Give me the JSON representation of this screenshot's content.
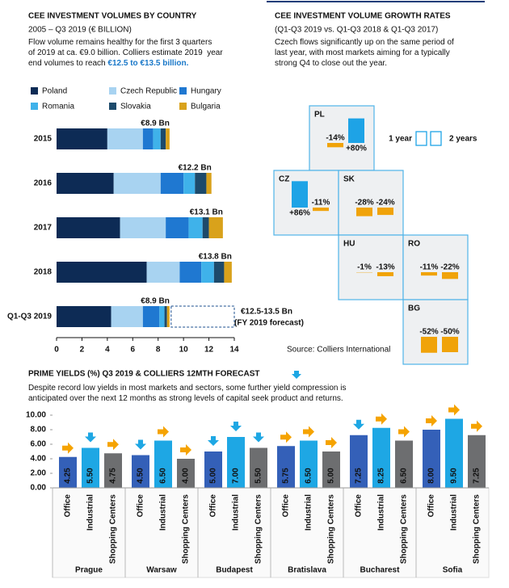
{
  "chart_data": [
    {
      "type": "barh",
      "title": "CEE INVESTMENT VOLUMES BY COUNTRY",
      "subtitle": "2005 – Q3 2019 (€ BILLION)",
      "description": [
        "Flow volume remains healthy for the first 3 quarters",
        "of 2019 at ca. €9.0 billion. Colliers estimate 2019  year",
        "end volumes to reach "
      ],
      "description_emphasis": "€12.5 to €13.5 billion.",
      "categories": [
        "2015",
        "2016",
        "2017",
        "2018",
        "Q1-Q3 2019"
      ],
      "series": [
        {
          "name": "Poland",
          "color": "#0d2b55",
          "values": [
            4.0,
            4.5,
            5.0,
            7.1,
            4.3
          ]
        },
        {
          "name": "Czech Republic",
          "color": "#a8d3f1",
          "values": [
            2.8,
            3.7,
            3.6,
            2.6,
            2.5
          ]
        },
        {
          "name": "Hungary",
          "color": "#1f78d1",
          "values": [
            0.8,
            1.8,
            1.8,
            1.7,
            1.3
          ]
        },
        {
          "name": "Romania",
          "color": "#3fb2ea",
          "values": [
            0.6,
            0.9,
            1.1,
            1.0,
            0.4
          ]
        },
        {
          "name": "Slovakia",
          "color": "#1d4a6b",
          "values": [
            0.4,
            0.9,
            0.5,
            0.8,
            0.2
          ]
        },
        {
          "name": "Bulgaria",
          "color": "#d9a21b",
          "values": [
            0.3,
            0.4,
            1.1,
            0.6,
            0.2
          ]
        }
      ],
      "total_labels": [
        "€8.9 Bn",
        "€12.2 Bn",
        "€13.1 Bn",
        "€13.8 Bn",
        "€8.9 Bn"
      ],
      "forecast": {
        "label": "€12.5-13.5 Bn",
        "note": "(FY 2019 forecast)"
      },
      "xlim": [
        0,
        14
      ],
      "xticks": [
        0,
        2,
        4,
        6,
        8,
        10,
        12,
        14
      ],
      "grid": false
    },
    {
      "type": "tiles",
      "title": "CEE INVESTMENT VOLUME GROWTH RATES",
      "subtitle": "(Q1-Q3 2019 vs. Q1-Q3 2018 & Q1-Q3 2017)",
      "description": [
        "Czech flows significantly up on the same period of",
        "last year, with most markets aiming for a typically",
        "strong Q4 to close out the year."
      ],
      "categories": [
        "PL",
        "CZ",
        "SK",
        "HU",
        "RO",
        "BG"
      ],
      "series": [
        {
          "name": "1 year",
          "values": [
            -14,
            86,
            -28,
            -1,
            -11,
            -52
          ],
          "value_labels": [
            "-14%",
            "+86%",
            "-28%",
            "-1%",
            "-11%",
            "-52%"
          ]
        },
        {
          "name": "2 years",
          "values": [
            80,
            -11,
            -24,
            -13,
            -22,
            -50
          ],
          "value_labels": [
            "+80%",
            "-11%",
            "-24%",
            "-13%",
            "-22%",
            "-50%"
          ]
        }
      ],
      "positive_color": "#1ea3e6",
      "negative_color": "#f0a30a",
      "source": "Source: Colliers International"
    },
    {
      "type": "bar",
      "title": "PRIME YIELDS (%) Q3 2019 & COLLIERS 12MTH FORECAST",
      "description": [
        "Despite record low yields in most markets and sectors, some further yield compression is",
        "anticipated over the next 12 months as strong levels of capital seek product and returns."
      ],
      "categories": [
        "Prague",
        "Warsaw",
        "Budapest",
        "Bratislava",
        "Bucharest",
        "Sofia"
      ],
      "series": [
        {
          "name": "Office",
          "color": "#3460b8",
          "values": [
            4.25,
            4.5,
            5.0,
            5.75,
            7.25,
            8.0
          ],
          "value_labels": [
            "4.25",
            "4.50",
            "5.00",
            "5.75",
            "7.25",
            "8.00"
          ],
          "forecast": [
            "right",
            "down",
            "down",
            "right",
            "down",
            "right"
          ]
        },
        {
          "name": "Industrial",
          "color": "#1ea7e4",
          "values": [
            5.5,
            6.5,
            7.0,
            6.5,
            8.25,
            9.5
          ],
          "value_labels": [
            "5.50",
            "6.50",
            "7.00",
            "6.50",
            "8.25",
            "9.50"
          ],
          "forecast": [
            "down",
            "right",
            "down",
            "right",
            "right",
            "right"
          ]
        },
        {
          "name": "Shopping Centers",
          "color": "#6d6e70",
          "values": [
            4.75,
            4.0,
            5.5,
            5.0,
            6.5,
            7.25
          ],
          "value_labels": [
            "4.75",
            "4.00",
            "5.50",
            "5.00",
            "6.50",
            "7.25"
          ],
          "forecast": [
            "right",
            "right",
            "down",
            "right",
            "right",
            "right"
          ]
        }
      ],
      "ylim": [
        0,
        10
      ],
      "yticks": [
        {
          "value": 0,
          "label": "0.00"
        },
        {
          "value": 2,
          "label": "2.00"
        },
        {
          "value": 4,
          "label": "4.00"
        },
        {
          "value": 6,
          "label": "6.00"
        },
        {
          "value": 8,
          "label": "8.00"
        },
        {
          "value": 10,
          "label": "10.00"
        }
      ],
      "grid": false
    }
  ]
}
